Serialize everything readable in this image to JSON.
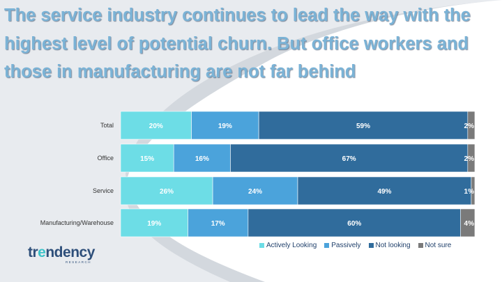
{
  "title": "The service industry continues to lead the way with the highest level of potential churn. But office workers and those in manufacturing are not far behind",
  "logo": {
    "text_pre": "tr",
    "text_e": "e",
    "text_post": "ndency",
    "subtext": "RESEARCH"
  },
  "colors": {
    "actively_looking": "#6ddde6",
    "passively": "#4ba3db",
    "not_looking": "#306c9c",
    "not_sure": "#7a7a7a",
    "title": "#7bb3d6"
  },
  "chart_data": {
    "type": "bar",
    "orientation": "horizontal",
    "stacked": true,
    "normalized_percent": true,
    "categories": [
      "Total",
      "Office",
      "Service",
      "Manufacturing/Warehouse"
    ],
    "series": [
      {
        "name": "Actively Looking",
        "values": [
          20,
          15,
          26,
          19
        ],
        "labels": [
          "20%",
          "15%",
          "26%",
          "19%"
        ]
      },
      {
        "name": "Passively",
        "values": [
          19,
          16,
          24,
          17
        ],
        "labels": [
          "19%",
          "16%",
          "24%",
          "17%"
        ]
      },
      {
        "name": "Not looking",
        "values": [
          59,
          67,
          49,
          60
        ],
        "labels": [
          "59%",
          "67%",
          "49%",
          "60%"
        ]
      },
      {
        "name": "Not sure",
        "values": [
          2,
          2,
          1,
          4
        ],
        "labels": [
          "2%",
          "2%",
          "1%",
          "4%"
        ]
      }
    ],
    "legend_position": "bottom-right",
    "grid": false
  }
}
